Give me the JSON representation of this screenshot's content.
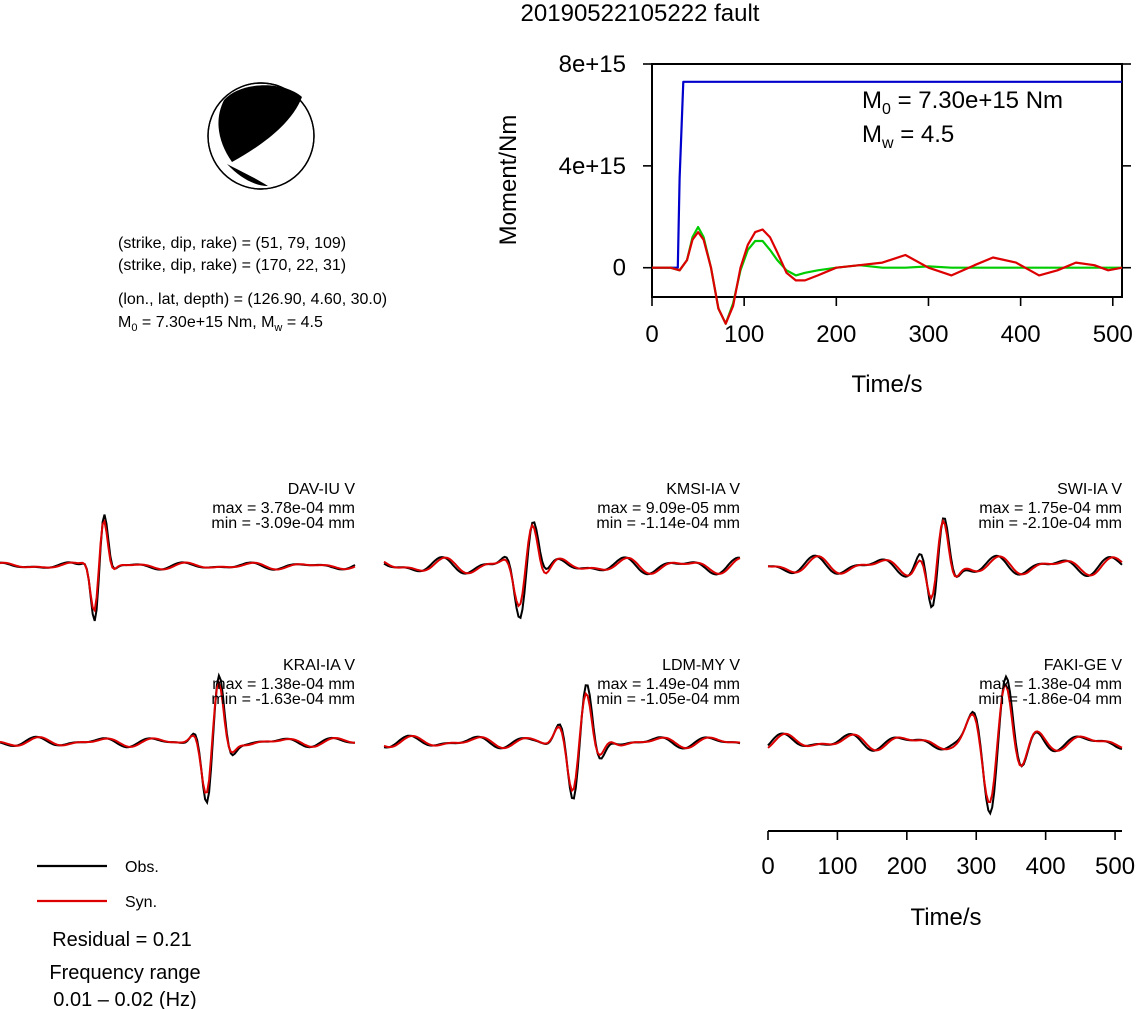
{
  "title": "20190522105222 fault",
  "beachball": {
    "mech1": "(strike, dip, rake) = (51, 79, 109)",
    "mech2": "(strike, dip, rake) = (170, 22, 31)",
    "location": "(lon., lat, depth) = (126.90, 4.60, 30.0)",
    "moment_prefix": "M",
    "moment_sub": "0",
    "moment_rest": " = 7.30e+15 Nm, M",
    "mw_sub": "w",
    "mw_rest": " = 4.5"
  },
  "chart_data": [
    {
      "type": "line",
      "title": "20190522105222 fault",
      "xlabel": "Time/s",
      "ylabel": "Moment/Nm",
      "xlim": [
        0,
        510
      ],
      "ylim": [
        -1150000000000000.0,
        8000000000000000.0
      ],
      "xticks": [
        0,
        100,
        200,
        300,
        400,
        500
      ],
      "yticks": [
        0,
        4000000000000000.0,
        8000000000000000.0
      ],
      "ytick_labels": [
        "0",
        "4e+15",
        "8e+15"
      ],
      "annotation": {
        "m0_prefix": "M",
        "m0_sub": "0",
        "m0_rest": " = 7.30e+15 Nm",
        "mw_prefix": "M",
        "mw_sub": "w",
        "mw_rest": " = 4.5"
      },
      "series": [
        {
          "color": "#0000cc",
          "x": [
            0,
            28,
            30,
            34,
            36,
            510
          ],
          "y": [
            0,
            0,
            3500000000000000.0,
            7300000000000000.0,
            7300000000000000.0,
            7300000000000000.0
          ]
        },
        {
          "color": "#00cc00",
          "x": [
            0,
            20,
            30,
            38,
            44,
            50,
            56,
            64,
            72,
            80,
            88,
            96,
            104,
            112,
            120,
            128,
            136,
            146,
            156,
            166,
            180,
            200,
            225,
            250,
            275,
            300,
            325,
            350,
            375,
            400,
            450,
            510
          ],
          "y": [
            0,
            0,
            -100000000000000.0,
            300000000000000.0,
            1200000000000000.0,
            1600000000000000.0,
            1200000000000000.0,
            0,
            -1600000000000000.0,
            -2200000000000000.0,
            -1400000000000000.0,
            -100000000000000.0,
            700000000000000.0,
            1050000000000000.0,
            1050000000000000.0,
            700000000000000.0,
            300000000000000.0,
            -100000000000000.0,
            -300000000000000.0,
            -200000000000000.0,
            -100000000000000.0,
            0,
            100000000000000.0,
            0,
            0,
            50000000000000.0,
            0,
            0,
            0,
            0,
            0,
            0
          ]
        },
        {
          "color": "#dd0000",
          "x": [
            0,
            20,
            30,
            38,
            44,
            50,
            56,
            64,
            72,
            80,
            88,
            96,
            104,
            112,
            120,
            128,
            136,
            146,
            156,
            166,
            180,
            200,
            225,
            250,
            275,
            300,
            325,
            350,
            370,
            395,
            420,
            440,
            460,
            480,
            495,
            510
          ],
          "y": [
            0,
            0,
            -100000000000000.0,
            300000000000000.0,
            1100000000000000.0,
            1400000000000000.0,
            1100000000000000.0,
            0,
            -1600000000000000.0,
            -2200000000000000.0,
            -1500000000000000.0,
            0,
            900000000000000.0,
            1400000000000000.0,
            1500000000000000.0,
            1200000000000000.0,
            600000000000000.0,
            -200000000000000.0,
            -500000000000000.0,
            -500000000000000.0,
            -300000000000000.0,
            0,
            100000000000000.0,
            200000000000000.0,
            500000000000000.0,
            0,
            -300000000000000.0,
            100000000000000.0,
            400000000000000.0,
            200000000000000.0,
            -300000000000000.0,
            -100000000000000.0,
            200000000000000.0,
            100000000000000.0,
            -100000000000000.0,
            0
          ]
        }
      ]
    },
    {
      "type": "line",
      "panel": "waveforms",
      "xlabel": "Time/s",
      "xlim": [
        0,
        510
      ],
      "xticks": [
        0,
        100,
        200,
        300,
        400,
        500
      ],
      "stations": [
        {
          "name": "DAV-IU V",
          "max": "max = 3.78e-04 mm",
          "min": "min = -3.09e-04 mm"
        },
        {
          "name": "KMSI-IA V",
          "max": "max = 9.09e-05 mm",
          "min": "min = -1.14e-04 mm"
        },
        {
          "name": "SWI-IA V",
          "max": "max = 1.75e-04 mm",
          "min": "min = -2.10e-04 mm"
        },
        {
          "name": "KRAI-IA V",
          "max": "max = 1.38e-04 mm",
          "min": "min = -1.63e-04 mm"
        },
        {
          "name": "LDM-MY V",
          "max": "max = 1.49e-04 mm",
          "min": "min = -1.05e-04 mm"
        },
        {
          "name": "FAKI-GE V",
          "max": "max = 1.38e-04 mm",
          "min": "min = -1.86e-04 mm"
        }
      ],
      "legend": {
        "obs_label": "Obs.",
        "syn_label": "Syn.",
        "obs_color": "#000000",
        "syn_color": "#dd0000"
      },
      "residual": "Residual = 0.21",
      "freq_title": "Frequency range",
      "freq_value": "0.01 – 0.02 (Hz)"
    }
  ]
}
